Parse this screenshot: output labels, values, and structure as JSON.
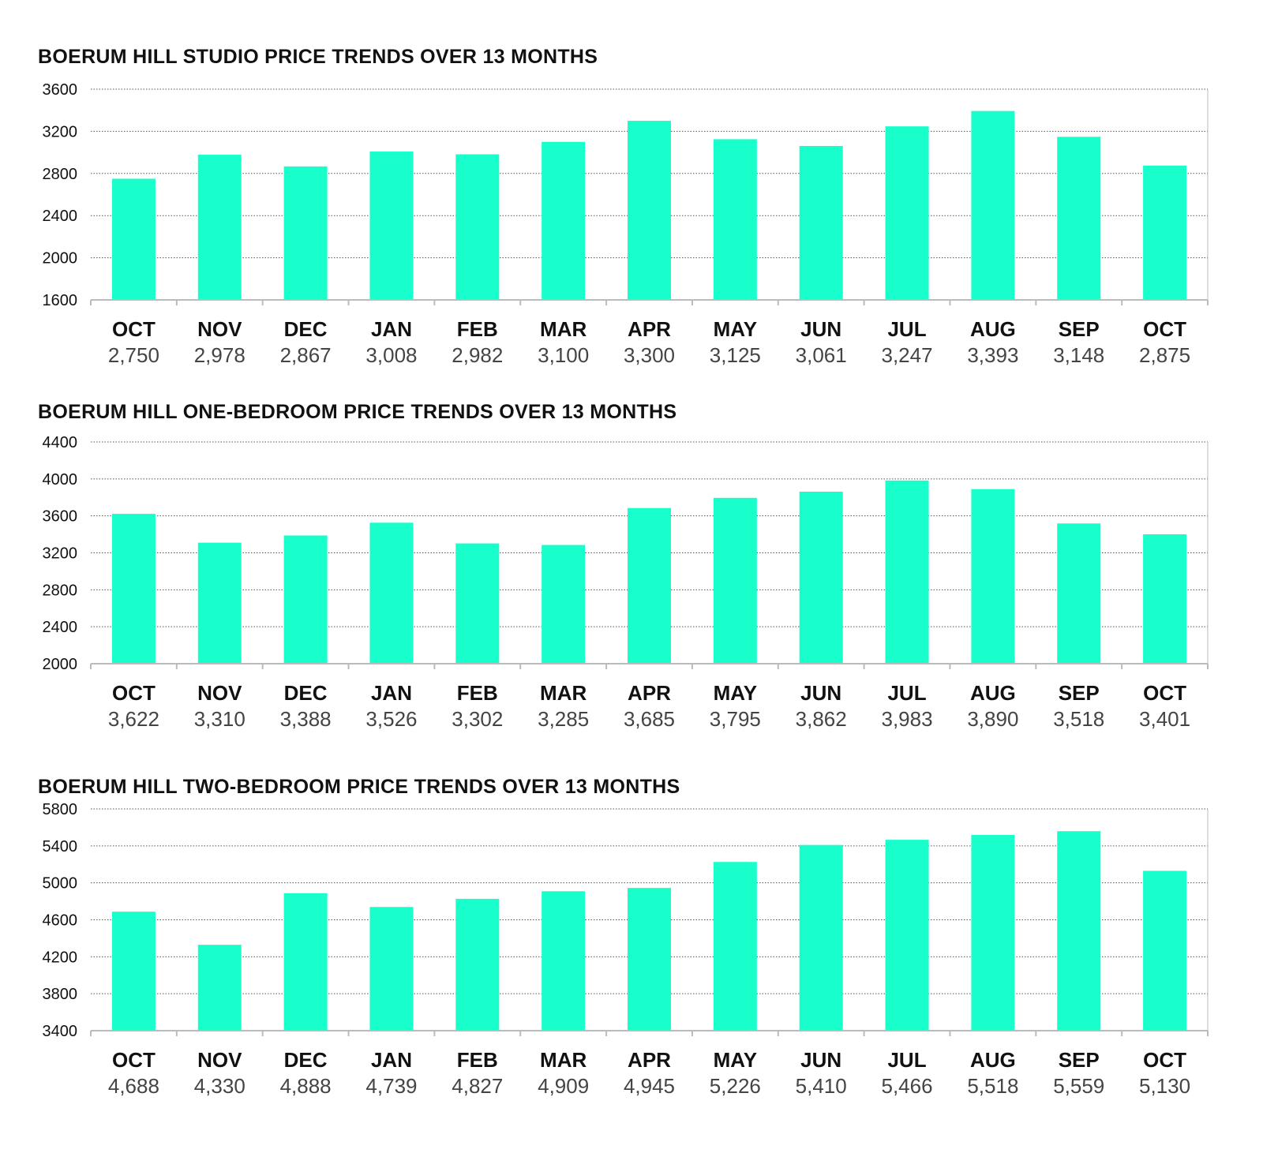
{
  "colors": {
    "bar": "#19ffcc",
    "grid": "#555555",
    "axis": "#bbbbbb"
  },
  "chart_data": [
    {
      "type": "bar",
      "title": "BOERUM HILL STUDIO PRICE TRENDS OVER 13 MONTHS",
      "categories": [
        "OCT",
        "NOV",
        "DEC",
        "JAN",
        "FEB",
        "MAR",
        "APR",
        "MAY",
        "JUN",
        "JUL",
        "AUG",
        "SEP",
        "OCT"
      ],
      "values": [
        2750,
        2978,
        2867,
        3008,
        2982,
        3100,
        3300,
        3125,
        3061,
        3247,
        3393,
        3148,
        2875
      ],
      "value_labels": [
        "2,750",
        "2,978",
        "2,867",
        "3,008",
        "2,982",
        "3,100",
        "3,300",
        "3,125",
        "3,061",
        "3,247",
        "3,393",
        "3,148",
        "2,875"
      ],
      "ylim": [
        1600,
        3600
      ],
      "yticks": [
        1600,
        2000,
        2400,
        2800,
        3200,
        3600
      ],
      "grid": true
    },
    {
      "type": "bar",
      "title": "BOERUM HILL ONE-BEDROOM PRICE TRENDS OVER 13 MONTHS",
      "categories": [
        "OCT",
        "NOV",
        "DEC",
        "JAN",
        "FEB",
        "MAR",
        "APR",
        "MAY",
        "JUN",
        "JUL",
        "AUG",
        "SEP",
        "OCT"
      ],
      "values": [
        3622,
        3310,
        3388,
        3526,
        3302,
        3285,
        3685,
        3795,
        3862,
        3983,
        3890,
        3518,
        3401
      ],
      "value_labels": [
        "3,622",
        "3,310",
        "3,388",
        "3,526",
        "3,302",
        "3,285",
        "3,685",
        "3,795",
        "3,862",
        "3,983",
        "3,890",
        "3,518",
        "3,401"
      ],
      "ylim": [
        2000,
        4400
      ],
      "yticks": [
        2000,
        2400,
        2800,
        3200,
        3600,
        4000,
        4400
      ],
      "grid": true
    },
    {
      "type": "bar",
      "title": "BOERUM HILL TWO-BEDROOM PRICE TRENDS OVER 13 MONTHS",
      "categories": [
        "OCT",
        "NOV",
        "DEC",
        "JAN",
        "FEB",
        "MAR",
        "APR",
        "MAY",
        "JUN",
        "JUL",
        "AUG",
        "SEP",
        "OCT"
      ],
      "values": [
        4688,
        4330,
        4888,
        4739,
        4827,
        4909,
        4945,
        5226,
        5410,
        5466,
        5518,
        5559,
        5130
      ],
      "value_labels": [
        "4,688",
        "4,330",
        "4,888",
        "4,739",
        "4,827",
        "4,909",
        "4,945",
        "5,226",
        "5,410",
        "5,466",
        "5,518",
        "5,559",
        "5,130"
      ],
      "ylim": [
        3400,
        5800
      ],
      "yticks": [
        3400,
        3800,
        4200,
        4600,
        5000,
        5400,
        5800
      ],
      "grid": true
    }
  ]
}
